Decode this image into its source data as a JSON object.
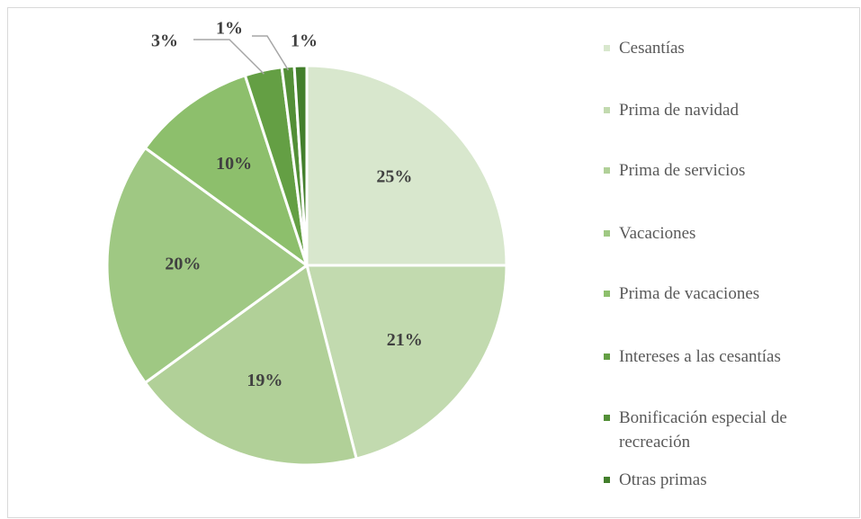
{
  "chart_data": {
    "type": "pie",
    "categories": [
      "Cesantías",
      "Prima de navidad",
      "Prima de servicios",
      "Vacaciones",
      "Prima de vacaciones",
      "Intereses a las cesantías",
      "Bonificación especial de recreación",
      "Otras primas"
    ],
    "values": [
      25,
      21,
      19,
      20,
      10,
      3,
      1,
      1
    ],
    "value_labels": [
      "25%",
      "21%",
      "19%",
      "20%",
      "10%",
      "3%",
      "1%",
      "1%"
    ],
    "colors": [
      "#d8e7cd",
      "#c2daaf",
      "#b1d098",
      "#9fc883",
      "#8dbf6c",
      "#649f44",
      "#538f37",
      "#437f2c"
    ],
    "legend": "right"
  }
}
